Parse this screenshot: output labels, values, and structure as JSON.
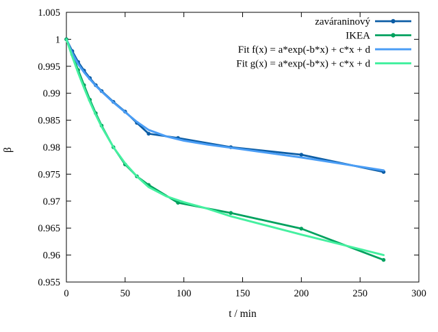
{
  "chart_data": {
    "type": "line",
    "title": "",
    "xlabel": "t / min",
    "ylabel": "β",
    "xlim": [
      0,
      300
    ],
    "ylim": [
      0.955,
      1.005
    ],
    "xticks": [
      0,
      50,
      100,
      150,
      200,
      250,
      300
    ],
    "xtick_labels": [
      "0",
      "50",
      "100",
      "150",
      "200",
      "250",
      "300"
    ],
    "yticks": [
      0.955,
      0.96,
      0.965,
      0.97,
      0.975,
      0.98,
      0.985,
      0.99,
      0.995,
      1,
      1.005
    ],
    "ytick_labels": [
      "0.955",
      "0.96",
      "0.965",
      "0.97",
      "0.975",
      "0.98",
      "0.985",
      "0.99",
      "0.995",
      "1",
      "1.005"
    ],
    "grid": false,
    "legend_position": "top-right",
    "frame_color": "#000000",
    "background_color": "#ffffff",
    "series": [
      {
        "name": "zaváraninový",
        "id": "zavaraninovy",
        "style": "linespoints",
        "color": "#0c5da5",
        "marker": "circle",
        "points": [
          [
            0,
            1.0
          ],
          [
            5,
            0.9978
          ],
          [
            10,
            0.9958
          ],
          [
            15,
            0.9942
          ],
          [
            20,
            0.9928
          ],
          [
            25,
            0.9915
          ],
          [
            30,
            0.9904
          ],
          [
            40,
            0.9884
          ],
          [
            50,
            0.9866
          ],
          [
            60,
            0.9845
          ],
          [
            70,
            0.9825
          ],
          [
            95,
            0.9817
          ],
          [
            140,
            0.98
          ],
          [
            200,
            0.9786
          ],
          [
            270,
            0.9754
          ]
        ]
      },
      {
        "name": "IKEA",
        "id": "ikea",
        "style": "linespoints",
        "color": "#00a15e",
        "marker": "circle",
        "points": [
          [
            0,
            1.0
          ],
          [
            5,
            0.9972
          ],
          [
            10,
            0.9943
          ],
          [
            15,
            0.9915
          ],
          [
            20,
            0.9888
          ],
          [
            25,
            0.9863
          ],
          [
            30,
            0.984
          ],
          [
            40,
            0.98
          ],
          [
            50,
            0.9768
          ],
          [
            60,
            0.9746
          ],
          [
            70,
            0.973
          ],
          [
            95,
            0.9697
          ],
          [
            140,
            0.9678
          ],
          [
            200,
            0.9649
          ],
          [
            270,
            0.9591
          ]
        ]
      },
      {
        "name": "Fit f(x) = a*exp(-b*x) + c*x + d",
        "id": "fit-f",
        "style": "line",
        "color": "#4a9df5",
        "marker": null,
        "points": [
          [
            0,
            1.0
          ],
          [
            5,
            0.9974
          ],
          [
            10,
            0.9954
          ],
          [
            15,
            0.9939
          ],
          [
            20,
            0.9926
          ],
          [
            25,
            0.9914
          ],
          [
            30,
            0.9903
          ],
          [
            40,
            0.9883
          ],
          [
            50,
            0.9865
          ],
          [
            60,
            0.9847
          ],
          [
            70,
            0.9832
          ],
          [
            85,
            0.982
          ],
          [
            100,
            0.9812
          ],
          [
            120,
            0.9805
          ],
          [
            140,
            0.9799
          ],
          [
            170,
            0.979
          ],
          [
            200,
            0.9781
          ],
          [
            235,
            0.9769
          ],
          [
            270,
            0.9757
          ]
        ]
      },
      {
        "name": "Fit g(x) = a*exp(-b*x) + c*x + d",
        "id": "fit-g",
        "style": "line",
        "color": "#45f0a0",
        "marker": null,
        "points": [
          [
            0,
            1.0
          ],
          [
            5,
            0.9968
          ],
          [
            10,
            0.9938
          ],
          [
            15,
            0.991
          ],
          [
            20,
            0.9884
          ],
          [
            25,
            0.986
          ],
          [
            30,
            0.9838
          ],
          [
            40,
            0.98
          ],
          [
            50,
            0.977
          ],
          [
            60,
            0.9746
          ],
          [
            70,
            0.9726
          ],
          [
            85,
            0.9709
          ],
          [
            100,
            0.9698
          ],
          [
            120,
            0.9686
          ],
          [
            140,
            0.9672
          ],
          [
            170,
            0.9655
          ],
          [
            200,
            0.9638
          ],
          [
            235,
            0.9619
          ],
          [
            270,
            0.96
          ]
        ]
      }
    ]
  }
}
